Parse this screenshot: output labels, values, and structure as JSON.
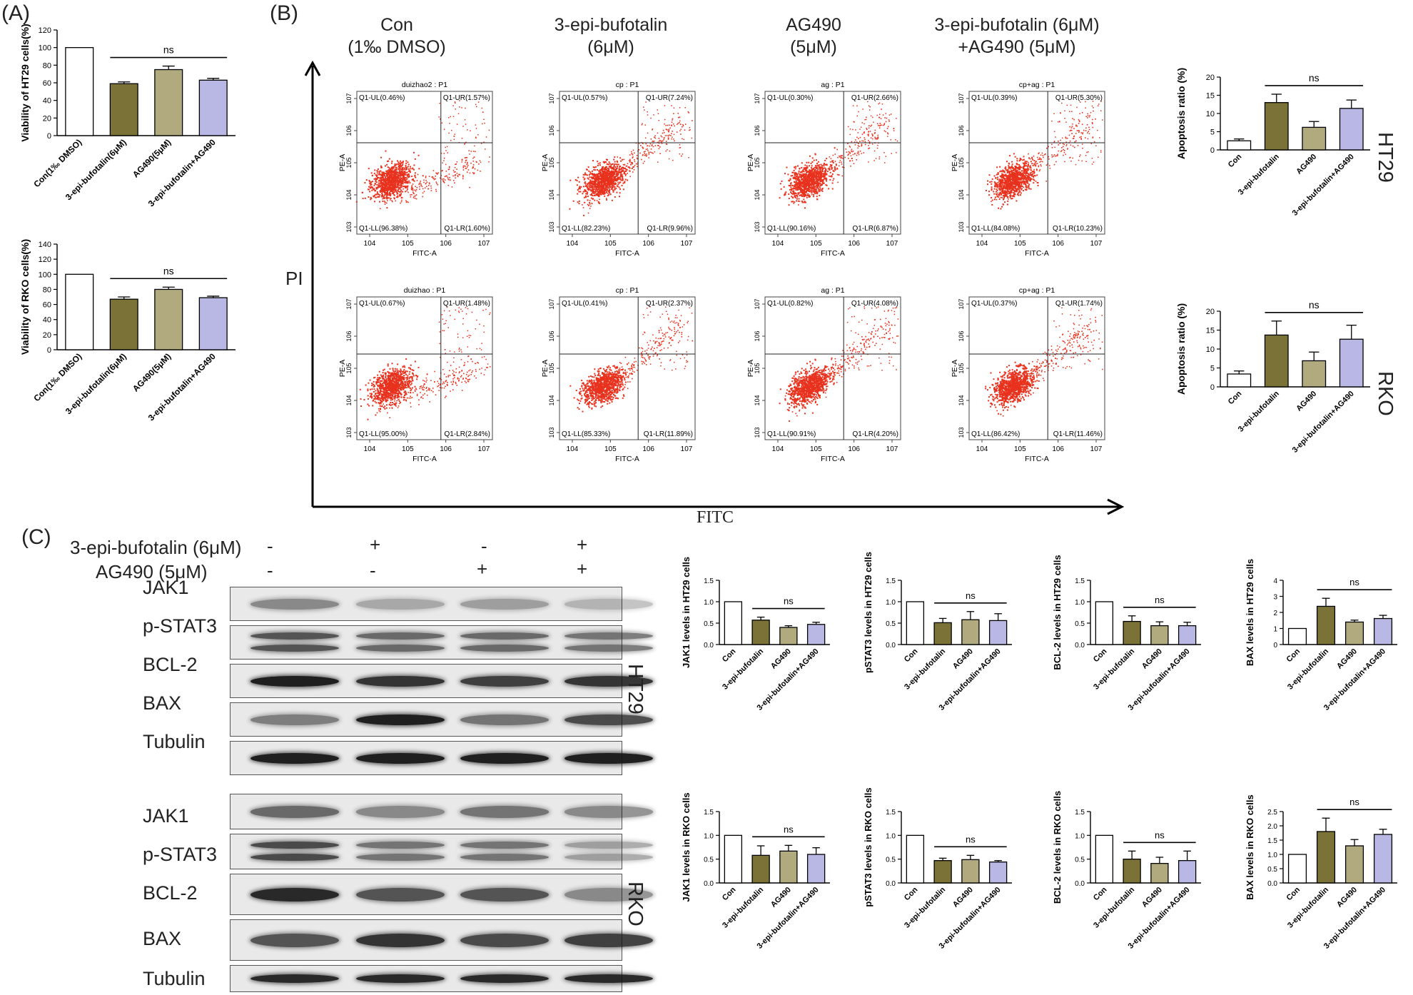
{
  "panels": {
    "a": "(A)",
    "b": "(B)",
    "c": "(C)"
  },
  "colors": {
    "con": "#ffffff",
    "epi": "#7a7237",
    "ag": "#b0aa7e",
    "combo": "#b9b7e4",
    "dots": "#e8321e"
  },
  "panel_b": {
    "columns": [
      "Con\n(1‰ DMSO)",
      "3-epi-bufotalin\n(6μM)",
      "AG490\n(5μM)",
      "3-epi-bufotalin (6μM)\n+AG490 (5μM)"
    ],
    "x_axis": "FITC",
    "y_axis": "PI",
    "cell_lines": [
      "HT29",
      "RKO"
    ],
    "plot_xlabel": "FITC-A",
    "plot_ylabel": "PE-A",
    "x_ticks": [
      "10^4",
      "10^5",
      "10^6",
      "10^7"
    ],
    "y_ticks": [
      "10^3",
      "10^4",
      "10^5",
      "10^6",
      "10^7"
    ],
    "flow": [
      {
        "title": "duizhao2 : P1",
        "UL": "Q1-UL(0.46%)",
        "UR": "Q1-UR(1.57%)",
        "LL": "Q1-LL(96.38%)",
        "LR": "Q1-LR(1.60%)"
      },
      {
        "title": "cp : P1",
        "UL": "Q1-UL(0.57%)",
        "UR": "Q1-UR(7.24%)",
        "LL": "Q1-LL(82.23%)",
        "LR": "Q1-LR(9.96%)"
      },
      {
        "title": "ag : P1",
        "UL": "Q1-UL(0.30%)",
        "UR": "Q1-UR(2.66%)",
        "LL": "Q1-LL(90.16%)",
        "LR": "Q1-LR(6.87%)"
      },
      {
        "title": "cp+ag : P1",
        "UL": "Q1-UL(0.39%)",
        "UR": "Q1-UR(5.30%)",
        "LL": "Q1-LL(84.08%)",
        "LR": "Q1-LR(10.23%)"
      },
      {
        "title": "duizhao : P1",
        "UL": "Q1-UL(0.67%)",
        "UR": "Q1-UR(1.48%)",
        "LL": "Q1-LL(95.00%)",
        "LR": "Q1-LR(2.84%)"
      },
      {
        "title": "cp : P1",
        "UL": "Q1-UL(0.41%)",
        "UR": "Q1-UR(2.37%)",
        "LL": "Q1-LL(85.33%)",
        "LR": "Q1-LR(11.89%)"
      },
      {
        "title": "ag : P1",
        "UL": "Q1-UL(0.82%)",
        "UR": "Q1-UR(4.08%)",
        "LL": "Q1-LL(90.91%)",
        "LR": "Q1-LR(4.20%)"
      },
      {
        "title": "cp+ag : P1",
        "UL": "Q1-UL(0.37%)",
        "UR": "Q1-UR(1.74%)",
        "LL": "Q1-LL(86.42%)",
        "LR": "Q1-LR(11.46%)"
      }
    ]
  },
  "panel_c": {
    "treat1_label": "3-epi-bufotalin (6μM)",
    "treat1_signs": [
      "-",
      "+",
      "-",
      "+"
    ],
    "treat2_label": "AG490 (5μM)",
    "treat2_signs": [
      "-",
      "-",
      "+",
      "+"
    ],
    "proteins": [
      "JAK1",
      "p-STAT3",
      "BCL-2",
      "BAX",
      "Tubulin"
    ],
    "proteins_rko": [
      "JAK1",
      "p-STAT3",
      "BCL-2",
      "BAX",
      "Tubulin"
    ],
    "cell_lines": [
      "HT29",
      "RKO"
    ]
  },
  "chart_data": [
    {
      "type": "bar",
      "panel": "A",
      "ylabel": "Viability of HT29 cells(%)",
      "categories": [
        "Con(1‰ DMSO)",
        "3-epi-bufotalin(6μM)",
        "AG490(5μM)",
        "3-epi-bufotalin+AG490"
      ],
      "values": [
        100,
        59,
        75,
        63
      ],
      "errors": [
        0,
        2,
        4,
        2
      ],
      "ylim": [
        0,
        120
      ],
      "yticks": [
        0,
        20,
        40,
        60,
        80,
        100,
        120
      ],
      "sig": "ns",
      "sig_span": [
        1,
        3
      ]
    },
    {
      "type": "bar",
      "panel": "A",
      "ylabel": "Viability of RKO cells(%)",
      "categories": [
        "Con(1‰ DMSO)",
        "3-epi-bufotalin(6μM)",
        "AG490(5μM)",
        "3-epi-bufotalin+AG490"
      ],
      "values": [
        100,
        67,
        80,
        69
      ],
      "errors": [
        0,
        3,
        3,
        2
      ],
      "ylim": [
        0,
        140
      ],
      "yticks": [
        0,
        20,
        40,
        60,
        80,
        100,
        120,
        140
      ],
      "sig": "ns",
      "sig_span": [
        1,
        3
      ]
    },
    {
      "type": "bar",
      "panel": "B",
      "ylabel": "Apoptosis ratio (%)",
      "categories": [
        "Con",
        "3-epi-bufotalin",
        "AG490",
        "3-epi-bufotalin+AG490"
      ],
      "values": [
        2.5,
        13,
        6.2,
        11.4
      ],
      "errors": [
        0.5,
        2.3,
        1.6,
        2.3
      ],
      "ylim": [
        0,
        20
      ],
      "yticks": [
        0,
        5,
        10,
        15,
        20
      ],
      "sig": "ns",
      "sig_span": [
        1,
        3
      ]
    },
    {
      "type": "bar",
      "panel": "B",
      "ylabel": "Apoptosis ratio (%)",
      "categories": [
        "Con",
        "3-epi-bufotalin",
        "AG490",
        "3-epi-bufotalin+AG490"
      ],
      "values": [
        3.4,
        13.7,
        6.9,
        12.6
      ],
      "errors": [
        0.8,
        3.7,
        2.3,
        3.7
      ],
      "ylim": [
        0,
        20
      ],
      "yticks": [
        0,
        5,
        10,
        15,
        20
      ],
      "sig": "ns",
      "sig_span": [
        1,
        3
      ]
    },
    {
      "type": "bar",
      "panel": "C",
      "ylabel": "JAK1 levels in HT29 cells",
      "categories": [
        "Con",
        "3-epi-bufotalin",
        "AG490",
        "3-epi-bufotalin+AG490"
      ],
      "values": [
        1.0,
        0.57,
        0.4,
        0.47
      ],
      "errors": [
        0,
        0.07,
        0.04,
        0.05
      ],
      "ylim": [
        0,
        1.5
      ],
      "yticks": [
        0.0,
        0.5,
        1.0,
        1.5
      ],
      "sig": "ns",
      "sig_span": [
        1,
        3
      ]
    },
    {
      "type": "bar",
      "panel": "C",
      "ylabel": "pSTAT3 levels in HT29 cells",
      "categories": [
        "Con",
        "3-epi-bufotalin",
        "AG490",
        "3-epi-bufotalin+AG490"
      ],
      "values": [
        1.0,
        0.51,
        0.58,
        0.56
      ],
      "errors": [
        0,
        0.1,
        0.19,
        0.16
      ],
      "ylim": [
        0,
        1.5
      ],
      "yticks": [
        0.0,
        0.5,
        1.0,
        1.5
      ],
      "sig": "ns",
      "sig_span": [
        1,
        3
      ]
    },
    {
      "type": "bar",
      "panel": "C",
      "ylabel": "BCL-2 levels in HT29 cells",
      "categories": [
        "Con",
        "3-epi-bufotalin",
        "AG490",
        "3-epi-bufotalin+AG490"
      ],
      "values": [
        1.0,
        0.54,
        0.44,
        0.44
      ],
      "errors": [
        0,
        0.13,
        0.09,
        0.08
      ],
      "ylim": [
        0,
        1.5
      ],
      "yticks": [
        0.0,
        0.5,
        1.0,
        1.5
      ],
      "sig": "ns",
      "sig_span": [
        1,
        3
      ]
    },
    {
      "type": "bar",
      "panel": "C",
      "ylabel": "BAX levels in HT29 cells",
      "categories": [
        "Con",
        "3-epi-bufotalin",
        "AG490",
        "3-epi-bufotalin+AG490"
      ],
      "values": [
        1.0,
        2.38,
        1.4,
        1.62
      ],
      "errors": [
        0,
        0.5,
        0.12,
        0.2
      ],
      "ylim": [
        0,
        4
      ],
      "yticks": [
        0,
        1,
        2,
        3,
        4
      ],
      "sig": "ns",
      "sig_span": [
        1,
        3
      ]
    },
    {
      "type": "bar",
      "panel": "C",
      "ylabel": "JAK1 levels in RKO cells",
      "categories": [
        "Con",
        "3-epi-bufotalin",
        "AG490",
        "3-epi-bufotalin+AG490"
      ],
      "values": [
        1.0,
        0.58,
        0.67,
        0.6
      ],
      "errors": [
        0,
        0.2,
        0.12,
        0.14
      ],
      "ylim": [
        0,
        1.5
      ],
      "yticks": [
        0.0,
        0.5,
        1.0,
        1.5
      ],
      "sig": "ns",
      "sig_span": [
        1,
        3
      ]
    },
    {
      "type": "bar",
      "panel": "C",
      "ylabel": "pSTAT3 levels in RKO cells",
      "categories": [
        "Con",
        "3-epi-bufotalin",
        "AG490",
        "3-epi-bufotalin+AG490"
      ],
      "values": [
        1.0,
        0.47,
        0.49,
        0.44
      ],
      "errors": [
        0,
        0.05,
        0.09,
        0.03
      ],
      "ylim": [
        0,
        1.5
      ],
      "yticks": [
        0.0,
        0.5,
        1.0,
        1.5
      ],
      "sig": "ns",
      "sig_span": [
        1,
        3
      ]
    },
    {
      "type": "bar",
      "panel": "C",
      "ylabel": "BCL-2 levels in RKO cells",
      "categories": [
        "Con",
        "3-epi-bufotalin",
        "AG490",
        "3-epi-bufotalin+AG490"
      ],
      "values": [
        1.0,
        0.5,
        0.41,
        0.47
      ],
      "errors": [
        0,
        0.17,
        0.13,
        0.2
      ],
      "ylim": [
        0,
        1.5
      ],
      "yticks": [
        0.0,
        0.5,
        1.0,
        1.5
      ],
      "sig": "ns",
      "sig_span": [
        1,
        3
      ]
    },
    {
      "type": "bar",
      "panel": "C",
      "ylabel": "BAX levels in RKO cells",
      "categories": [
        "Con",
        "3-epi-bufotalin",
        "AG490",
        "3-epi-bufotalin+AG490"
      ],
      "values": [
        1.0,
        1.8,
        1.3,
        1.7
      ],
      "errors": [
        0,
        0.47,
        0.22,
        0.18
      ],
      "ylim": [
        0,
        2.5
      ],
      "yticks": [
        0.0,
        0.5,
        1.0,
        1.5,
        2.0,
        2.5
      ],
      "sig": "ns",
      "sig_span": [
        1,
        3
      ]
    }
  ]
}
